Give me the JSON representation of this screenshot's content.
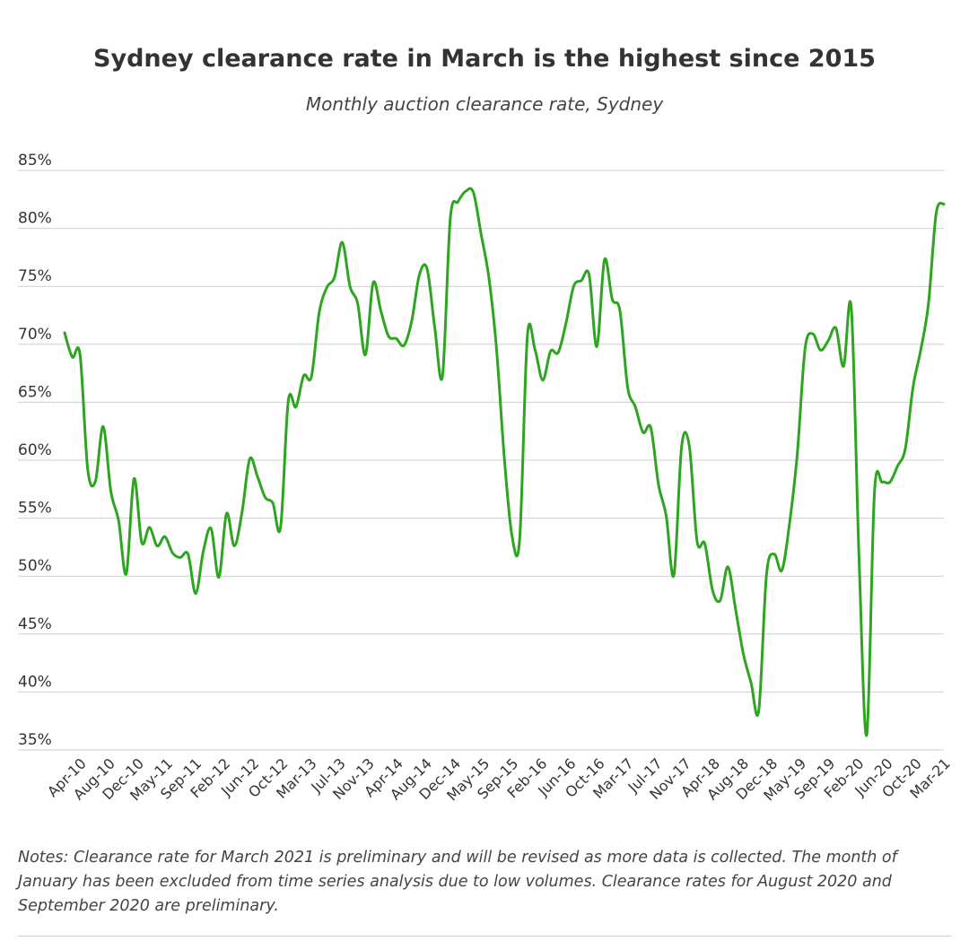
{
  "chart_data": {
    "type": "line",
    "title": "Sydney clearance rate in March is the highest since 2015",
    "subtitle": "Monthly auction clearance rate, Sydney",
    "ylim": [
      35,
      85
    ],
    "yticks": [
      35,
      40,
      45,
      50,
      55,
      60,
      65,
      70,
      75,
      80,
      85
    ],
    "ytick_labels": [
      "35%",
      "40%",
      "45%",
      "50%",
      "55%",
      "60%",
      "65%",
      "70%",
      "75%",
      "80%",
      "85%"
    ],
    "xtick_labels": [
      "Apr-10",
      "Aug-10",
      "Dec-10",
      "May-11",
      "Sep-11",
      "Feb-12",
      "Jun-12",
      "Oct-12",
      "Mar-13",
      "Jul-13",
      "Nov-13",
      "Apr-14",
      "Aug-14",
      "Dec-14",
      "May-15",
      "Sep-15",
      "Feb-16",
      "Jun-16",
      "Oct-16",
      "Mar-17",
      "Jul-17",
      "Nov-17",
      "Apr-18",
      "Aug-18",
      "Dec-18",
      "May-19",
      "Sep-19",
      "Feb-20",
      "Jun-20",
      "Oct-20",
      "Mar-21"
    ],
    "grid": true,
    "series": [
      {
        "color": "#2da520",
        "values": [
          71.0,
          68.9,
          69.1,
          59.2,
          58.2,
          62.9,
          57.3,
          54.8,
          50.2,
          58.4,
          52.9,
          54.2,
          52.6,
          53.4,
          52.0,
          51.6,
          51.9,
          48.5,
          52.2,
          54.1,
          49.9,
          55.4,
          52.6,
          55.5,
          60.1,
          58.6,
          56.8,
          56.3,
          54.2,
          65.1,
          64.6,
          67.3,
          67.2,
          72.7,
          74.9,
          75.8,
          78.8,
          75.0,
          73.5,
          69.1,
          75.3,
          72.9,
          70.7,
          70.5,
          69.9,
          72.0,
          76.0,
          76.5,
          71.4,
          67.3,
          80.8,
          82.3,
          83.2,
          83.1,
          79.5,
          75.8,
          69.6,
          60.3,
          53.5,
          53.2,
          70.7,
          69.5,
          66.9,
          69.4,
          69.3,
          71.8,
          75.0,
          75.5,
          76.0,
          69.8,
          77.3,
          73.9,
          72.9,
          66.3,
          64.6,
          62.4,
          62.8,
          57.9,
          55.2,
          50.1,
          61.2,
          61.2,
          53.0,
          52.8,
          48.8,
          47.9,
          50.8,
          47.1,
          43.3,
          40.8,
          38.4,
          50.1,
          51.9,
          50.5,
          54.6,
          60.6,
          69.6,
          70.9,
          69.5,
          70.3,
          71.4,
          68.1,
          73.1,
          51.6,
          36.3,
          57.2,
          58.1,
          58.1,
          59.5,
          61.0,
          66.3,
          69.5,
          73.5,
          81.3,
          82.1
        ]
      }
    ]
  },
  "notes": "Notes: Clearance rate for March 2021 is preliminary and will be revised as more data is collected. The month of January has been excluded from time series analysis due to low volumes. Clearance rates for August 2020 and September 2020 are preliminary."
}
